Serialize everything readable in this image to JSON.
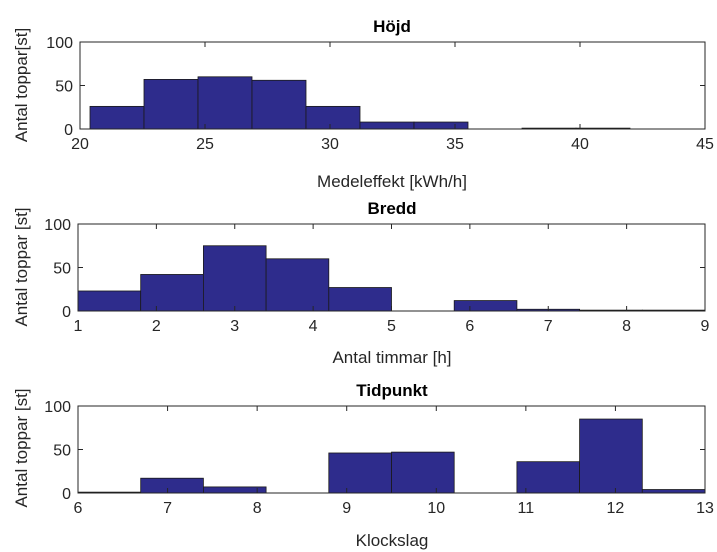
{
  "chart_data": [
    {
      "type": "bar",
      "title": "Höjd",
      "xlabel": "Medeleffekt [kWh/h]",
      "ylabel": "Antal toppar[st]",
      "xlim": [
        20,
        45
      ],
      "ylim": [
        0,
        100
      ],
      "xticks": [
        "20",
        "25",
        "30",
        "35",
        "40",
        "45"
      ],
      "yticks": [
        "0",
        "50",
        "100"
      ],
      "bin_edges": [
        20.4,
        22.56,
        24.72,
        26.88,
        29.04,
        31.2,
        33.36,
        35.52,
        37.68,
        39.84,
        42.0
      ],
      "values": [
        26,
        57,
        60,
        56,
        26,
        8,
        8,
        0,
        1,
        1
      ]
    },
    {
      "type": "bar",
      "title": "Bredd",
      "xlabel": "Antal timmar [h]",
      "ylabel": "Antal toppar [st]",
      "xlim": [
        1,
        9
      ],
      "ylim": [
        0,
        100
      ],
      "xticks": [
        "1",
        "2",
        "3",
        "4",
        "5",
        "6",
        "7",
        "8",
        "9"
      ],
      "yticks": [
        "0",
        "50",
        "100"
      ],
      "bin_edges": [
        1.0,
        1.8,
        2.6,
        3.4,
        4.2,
        5.0,
        5.8,
        6.6,
        7.4,
        8.2,
        9.0
      ],
      "values": [
        23,
        42,
        75,
        60,
        27,
        0,
        12,
        2,
        1,
        1
      ]
    },
    {
      "type": "bar",
      "title": "Tidpunkt",
      "xlabel": "Klockslag",
      "ylabel": "Antal toppar [st]",
      "xlim": [
        6,
        13
      ],
      "ylim": [
        0,
        100
      ],
      "xticks": [
        "6",
        "7",
        "8",
        "9",
        "10",
        "11",
        "12",
        "13"
      ],
      "yticks": [
        "0",
        "50",
        "100"
      ],
      "bin_edges": [
        6.0,
        6.7,
        7.4,
        8.1,
        8.8,
        9.5,
        10.2,
        10.9,
        11.6,
        12.3,
        13.0
      ],
      "values": [
        1,
        17,
        7,
        0,
        46,
        47,
        0,
        36,
        85,
        4
      ]
    }
  ],
  "colors": {
    "bar_fill": "#2e2c8c",
    "bar_edge": "#1a1a1a",
    "axis": "#262626"
  }
}
